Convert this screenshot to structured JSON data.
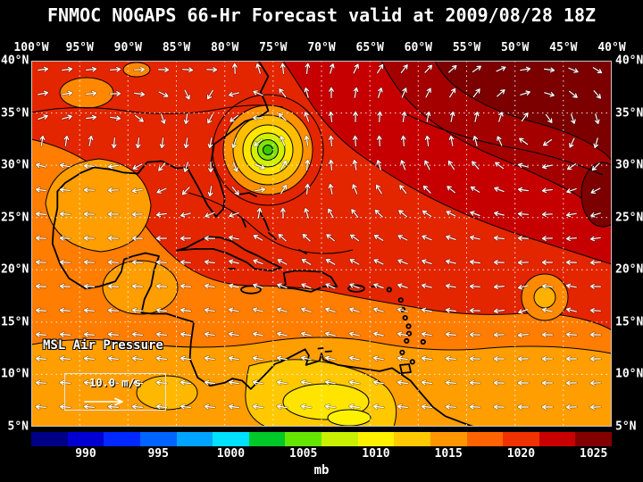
{
  "title": "FNMOC NOGAPS 66-Hr Forecast valid at 2009/08/28 18Z",
  "axes": {
    "lon_labels": [
      "100°W",
      "95°W",
      "90°W",
      "85°W",
      "80°W",
      "75°W",
      "70°W",
      "65°W",
      "60°W",
      "55°W",
      "50°W",
      "45°W",
      "40°W"
    ],
    "lat_labels": [
      "40°N",
      "35°N",
      "30°N",
      "25°N",
      "20°N",
      "15°N",
      "10°N",
      "5°N"
    ]
  },
  "map": {
    "field_label": "MSL Air Pressure",
    "wind_scale_label": "10.0 m/s",
    "features": [
      "Closed cyclonic circulation with concentric low-pressure contours near 77°W 31°N",
      "Broad dark-red high-pressure area over the open Atlantic (upper right)",
      "Easterly trade-wind arrows across the Caribbean",
      "Small cyclonic swirl near 55°W 17°N",
      "Yellow lower-pressure tongue over Colombia/Venezuela (bottom center)"
    ]
  },
  "colorbar": {
    "unit_label": "mb",
    "tick_labels": [
      "990",
      "995",
      "1000",
      "1005",
      "1010",
      "1015",
      "1020",
      "1025"
    ],
    "segment_colors": [
      "#000086",
      "#0000D2",
      "#0028FF",
      "#0064FF",
      "#00A4FF",
      "#00E0FF",
      "#00C828",
      "#64E600",
      "#C8F000",
      "#FFF000",
      "#FFC800",
      "#FF9600",
      "#FF6400",
      "#F03200",
      "#C80000",
      "#820000"
    ]
  },
  "colors": {
    "background": "#000000",
    "text": "#FFFFFF",
    "grid": "#FFFFFF",
    "coastline": "#000000",
    "wind_arrows": "#FFFFFF",
    "map_base_red": "#E32600"
  }
}
